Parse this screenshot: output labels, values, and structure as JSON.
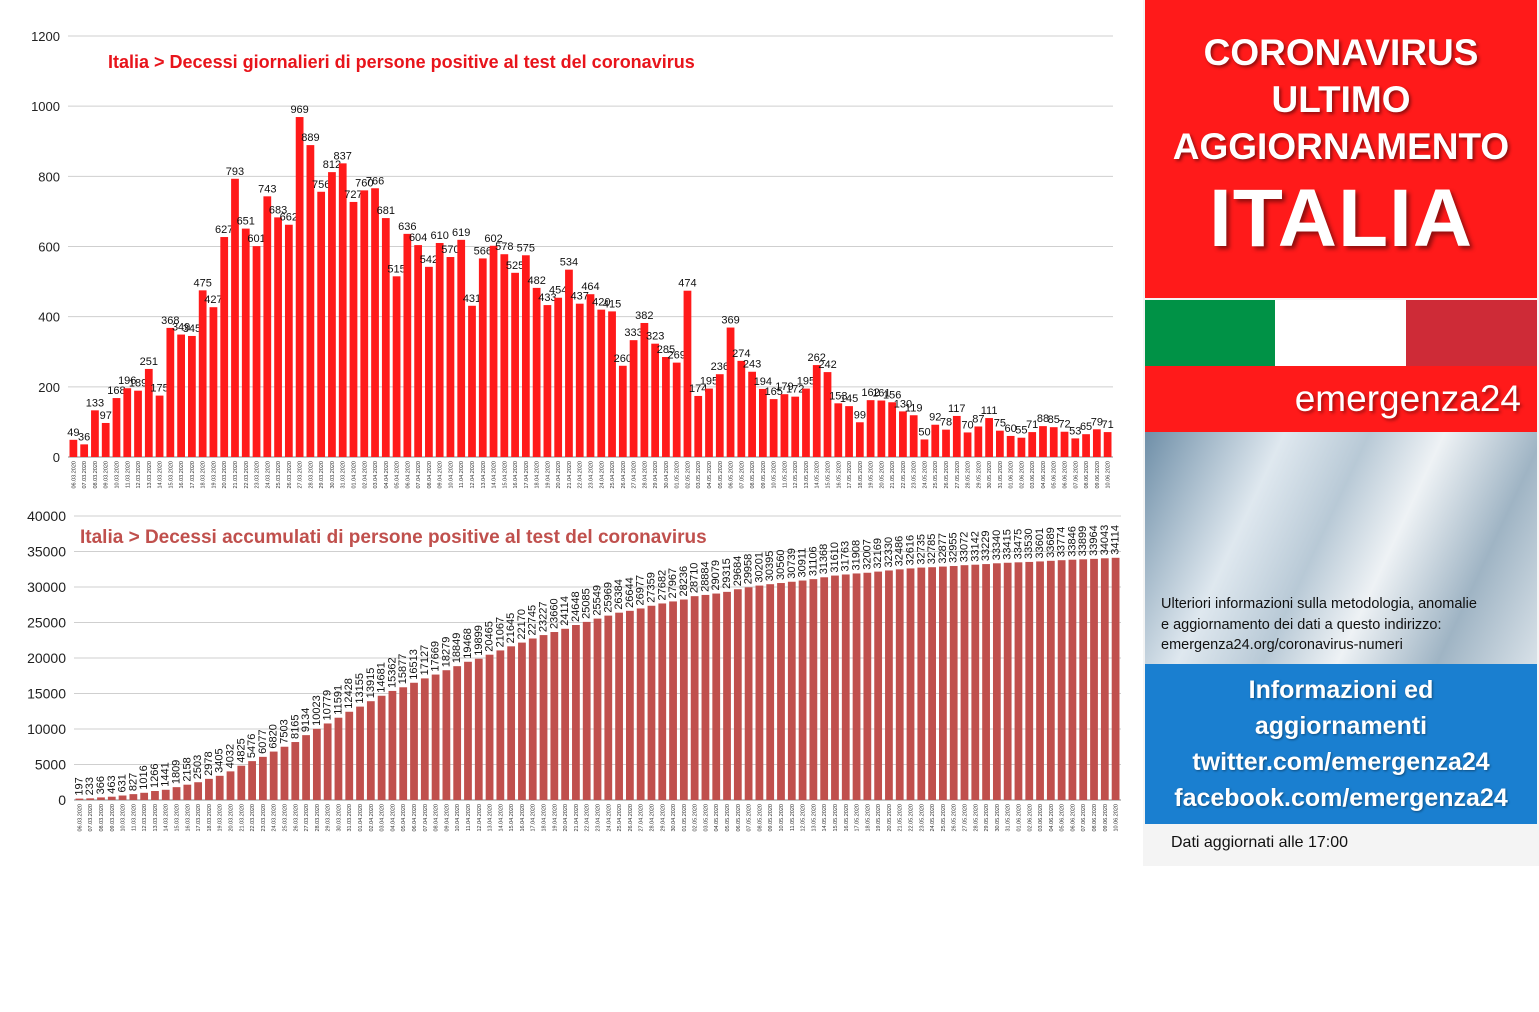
{
  "chart_data": [
    {
      "type": "bar",
      "title": "Italia > Decessi giornalieri di persone positive al test del coronavirus",
      "ylim": [
        0,
        1200
      ],
      "yticks": [
        0,
        200,
        400,
        600,
        800,
        1000,
        1200
      ],
      "grid": true,
      "color": "#ff1a1a",
      "categories": [
        "06.03.2020",
        "07.03.2020",
        "08.03.2020",
        "09.03.2020",
        "10.03.2020",
        "11.03.2020",
        "12.03.2020",
        "13.03.2020",
        "14.03.2020",
        "15.03.2020",
        "16.03.2020",
        "17.03.2020",
        "18.03.2020",
        "19.03.2020",
        "20.03.2020",
        "21.03.2020",
        "22.03.2020",
        "23.03.2020",
        "24.03.2020",
        "25.03.2020",
        "26.03.2020",
        "27.03.2020",
        "28.03.2020",
        "29.03.2020",
        "30.03.2020",
        "31.03.2020",
        "01.04.2020",
        "02.04.2020",
        "03.04.2020",
        "04.04.2020",
        "05.04.2020",
        "06.04.2020",
        "07.04.2020",
        "08.04.2020",
        "09.04.2020",
        "10.04.2020",
        "11.04.2020",
        "12.04.2020",
        "13.04.2020",
        "14.04.2020",
        "15.04.2020",
        "16.04.2020",
        "17.04.2020",
        "18.04.2020",
        "19.04.2020",
        "20.04.2020",
        "21.04.2020",
        "22.04.2020",
        "23.04.2020",
        "24.04.2020",
        "25.04.2020",
        "26.04.2020",
        "27.04.2020",
        "28.04.2020",
        "29.04.2020",
        "30.04.2020",
        "01.05.2020",
        "02.05.2020",
        "03.05.2020",
        "04.05.2020",
        "05.05.2020",
        "06.05.2020",
        "07.05.2020",
        "08.05.2020",
        "09.05.2020",
        "10.05.2020",
        "11.05.2020",
        "12.05.2020",
        "13.05.2020",
        "14.05.2020",
        "15.05.2020",
        "16.05.2020",
        "17.05.2020",
        "18.05.2020",
        "19.05.2020",
        "20.05.2020",
        "21.05.2020",
        "22.05.2020",
        "23.05.2020",
        "24.05.2020",
        "25.05.2020",
        "26.05.2020",
        "27.05.2020",
        "28.05.2020",
        "29.05.2020",
        "30.05.2020",
        "31.05.2020",
        "01.06.2020",
        "02.06.2020",
        "03.06.2020",
        "04.06.2020",
        "05.06.2020",
        "06.06.2020",
        "07.06.2020",
        "08.06.2020",
        "09.06.2020",
        "10.06.2020"
      ],
      "values": [
        49,
        36,
        133,
        97,
        168,
        196,
        189,
        251,
        175,
        368,
        349,
        345,
        475,
        427,
        627,
        793,
        651,
        601,
        743,
        683,
        662,
        969,
        889,
        756,
        812,
        837,
        727,
        760,
        766,
        681,
        515,
        636,
        604,
        542,
        610,
        570,
        619,
        431,
        566,
        602,
        578,
        525,
        575,
        482,
        433,
        454,
        534,
        437,
        464,
        420,
        415,
        260,
        333,
        382,
        323,
        285,
        269,
        474,
        174,
        195,
        236,
        369,
        274,
        243,
        194,
        165,
        179,
        172,
        195,
        262,
        242,
        153,
        145,
        99,
        162,
        161,
        156,
        130,
        119,
        50,
        92,
        78,
        117,
        70,
        87,
        111,
        75,
        60,
        55,
        71,
        88,
        85,
        72,
        53,
        65,
        79,
        71
      ]
    },
    {
      "type": "bar",
      "title": "Italia > Decessi accumulati di persone positive al test del coronavirus",
      "ylim": [
        0,
        40000
      ],
      "yticks": [
        0,
        5000,
        10000,
        15000,
        20000,
        25000,
        30000,
        35000,
        40000
      ],
      "grid": true,
      "color": "#c0504d",
      "categories": [
        "06.03.2020",
        "07.03.2020",
        "08.03.2020",
        "09.03.2020",
        "10.03.2020",
        "11.03.2020",
        "12.03.2020",
        "13.03.2020",
        "14.03.2020",
        "15.03.2020",
        "16.03.2020",
        "17.03.2020",
        "18.03.2020",
        "19.03.2020",
        "20.03.2020",
        "21.03.2020",
        "22.03.2020",
        "23.03.2020",
        "24.03.2020",
        "25.03.2020",
        "26.03.2020",
        "27.03.2020",
        "28.03.2020",
        "29.03.2020",
        "30.03.2020",
        "31.03.2020",
        "01.04.2020",
        "02.04.2020",
        "03.04.2020",
        "04.04.2020",
        "05.04.2020",
        "06.04.2020",
        "07.04.2020",
        "08.04.2020",
        "09.04.2020",
        "10.04.2020",
        "11.04.2020",
        "12.04.2020",
        "13.04.2020",
        "14.04.2020",
        "15.04.2020",
        "16.04.2020",
        "17.04.2020",
        "18.04.2020",
        "19.04.2020",
        "20.04.2020",
        "21.04.2020",
        "22.04.2020",
        "23.04.2020",
        "24.04.2020",
        "25.04.2020",
        "26.04.2020",
        "27.04.2020",
        "28.04.2020",
        "29.04.2020",
        "30.04.2020",
        "01.05.2020",
        "02.05.2020",
        "03.05.2020",
        "04.05.2020",
        "05.05.2020",
        "06.05.2020",
        "07.05.2020",
        "08.05.2020",
        "09.05.2020",
        "10.05.2020",
        "11.05.2020",
        "12.05.2020",
        "13.05.2020",
        "14.05.2020",
        "15.05.2020",
        "16.05.2020",
        "17.05.2020",
        "18.05.2020",
        "19.05.2020",
        "20.05.2020",
        "21.05.2020",
        "22.05.2020",
        "23.05.2020",
        "24.05.2020",
        "25.05.2020",
        "26.05.2020",
        "27.05.2020",
        "28.05.2020",
        "29.05.2020",
        "30.05.2020",
        "31.05.2020",
        "01.06.2020",
        "02.06.2020",
        "03.06.2020",
        "04.06.2020",
        "05.06.2020",
        "06.06.2020",
        "07.06.2020",
        "08.06.2020",
        "09.06.2020",
        "10.06.2020"
      ],
      "values": [
        197,
        233,
        366,
        463,
        631,
        827,
        1016,
        1266,
        1441,
        1809,
        2158,
        2503,
        2978,
        3405,
        4032,
        4825,
        5476,
        6077,
        6820,
        7503,
        8165,
        9134,
        10023,
        10779,
        11591,
        12428,
        13155,
        13915,
        14681,
        15362,
        15877,
        16513,
        17127,
        17669,
        18279,
        18849,
        19468,
        19899,
        20465,
        21067,
        21645,
        22170,
        22745,
        23227,
        23660,
        24114,
        24648,
        25085,
        25549,
        25969,
        26384,
        26644,
        26977,
        27359,
        27682,
        27967,
        28236,
        28710,
        28884,
        29079,
        29315,
        29684,
        29958,
        30201,
        30395,
        30560,
        30739,
        30911,
        31106,
        31368,
        31610,
        31763,
        31908,
        32007,
        32169,
        32330,
        32486,
        32616,
        32735,
        32785,
        32877,
        32955,
        33072,
        33142,
        33229,
        33340,
        33415,
        33475,
        33530,
        33601,
        33689,
        33774,
        33846,
        33899,
        33964,
        34043,
        34114
      ]
    }
  ],
  "side": {
    "line1": "CORONAVIRUS",
    "line2": "ULTIMO",
    "line3": "AGGIORNAMENTO",
    "country": "ITALIA",
    "brand": "emergenza24",
    "handle": "@emergenza24",
    "info1": "Ulteriori informazioni sulla metodologia, anomalie",
    "info2": "e aggiornamento dei dati a questo indirizzo:",
    "info3": "emergenza24.org/coronavirus-numeri",
    "blue1": "Informazioni ed",
    "blue2": "aggiornamenti",
    "blue3": "twitter.com/emergenza24",
    "blue4": "facebook.com/emergenza24",
    "footer": "Dati aggiornati alle 17:00",
    "flag_colors": [
      "#009246",
      "#ffffff",
      "#ce2b37"
    ]
  }
}
